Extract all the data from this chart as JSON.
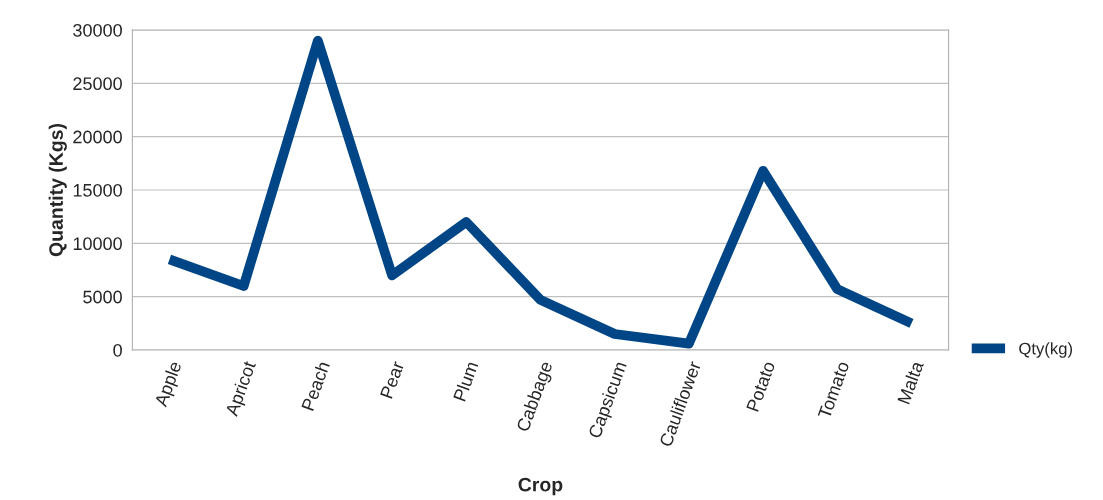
{
  "chart_data": {
    "type": "line",
    "xlabel": "Crop",
    "ylabel": "Quantity (Kgs)",
    "categories": [
      "Apple",
      "Apricot",
      "Peach",
      "Pear",
      "Plum",
      "Cabbage",
      "Capsicum",
      "Cauliflower",
      "Potato",
      "Tomato",
      "Malta"
    ],
    "series": [
      {
        "name": "Qty(kg)",
        "color": "#004586",
        "values": [
          8500,
          6000,
          29000,
          7000,
          12000,
          4700,
          1500,
          600,
          16800,
          5700,
          2500
        ]
      }
    ],
    "ylim": [
      0,
      30000
    ],
    "yticks": [
      0,
      5000,
      10000,
      15000,
      20000,
      25000,
      30000
    ],
    "grid": "y",
    "legend": "right",
    "marker": "none"
  }
}
